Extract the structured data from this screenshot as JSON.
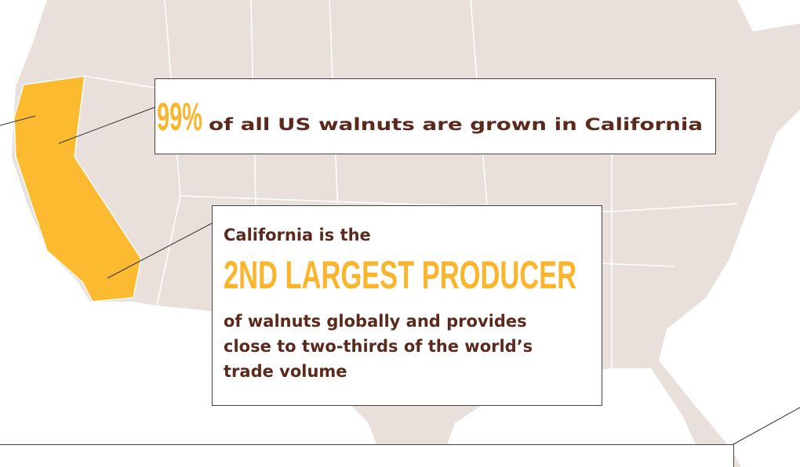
{
  "callouts": [
    {
      "highlight": "99%",
      "text": "of all US walnuts are grown in California"
    },
    {
      "intro": "California is the",
      "highlight": "2ND LARGEST PRODUCER",
      "lines": [
        "of walnuts globally and provides",
        "close to two-thirds of the world’s",
        "trade volume"
      ]
    }
  ]
}
